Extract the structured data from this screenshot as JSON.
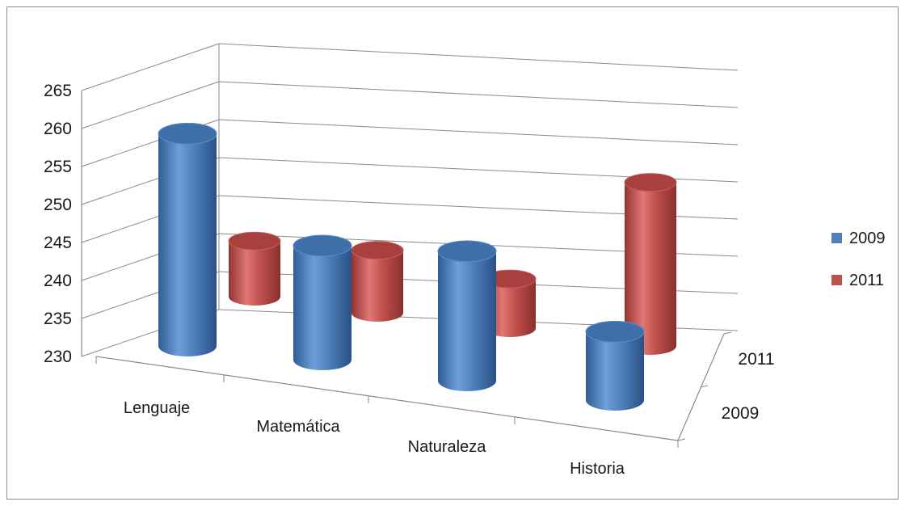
{
  "chart_data": {
    "type": "bar",
    "subtype": "3d-cylinder",
    "title": "",
    "xlabel": "",
    "ylabel": "",
    "ylim": [
      230,
      265
    ],
    "yticks": [
      230,
      235,
      240,
      245,
      250,
      255,
      260,
      265
    ],
    "grid": true,
    "legend": "right",
    "categories": [
      "Lenguaje",
      "Matemática",
      "Naturaleza",
      "Historia"
    ],
    "depth_labels": [
      "2011",
      "2009"
    ],
    "series": [
      {
        "name": "2009",
        "color": "#4f81bd",
        "values": [
          260,
          247,
          249,
          241
        ]
      },
      {
        "name": "2011",
        "color": "#c0504d",
        "values": [
          246,
          247,
          245,
          261
        ]
      }
    ]
  }
}
